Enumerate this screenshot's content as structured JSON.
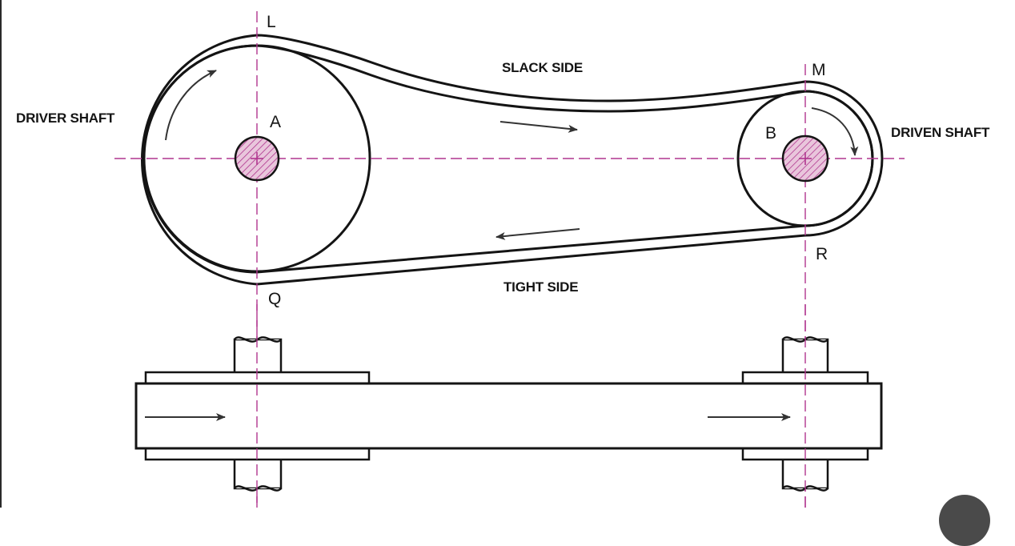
{
  "labels": {
    "driver_shaft": "DRIVER SHAFT",
    "driven_shaft": "DRIVEN SHAFT",
    "slack_side": "SLACK SIDE",
    "tight_side": "TIGHT SIDE",
    "point_l": "L",
    "point_m": "M",
    "point_q": "Q",
    "point_r": "R",
    "center_a": "A",
    "center_b": "B"
  },
  "colors": {
    "line": "#141414",
    "centerline": "#b0358f",
    "shaft_fill": "#e9c6dc",
    "shaft_hatch": "#b0358f",
    "arrow": "#333333"
  }
}
